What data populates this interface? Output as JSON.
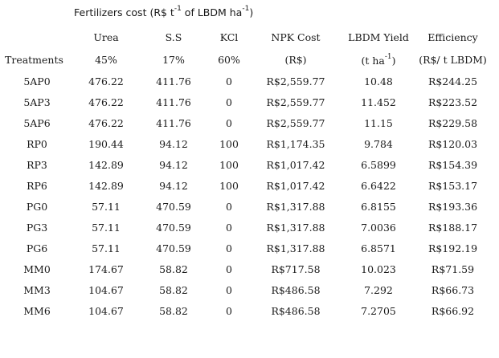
{
  "title": {
    "prefix": "Fertilizers cost (R$ t",
    "sup1": "-1",
    "middle": " of LBDM ha",
    "sup2": "-1",
    "suffix": ")"
  },
  "header_row1": {
    "urea": "Urea",
    "ss": "S.S",
    "kcl": "KCl",
    "npk": "NPK Cost",
    "yield": "LBDM Yield",
    "efficiency": "Efficiency"
  },
  "header_row2": {
    "treatments": "Treatments",
    "urea": "45%",
    "ss": "17%",
    "kcl": "60%",
    "npk": "(R$)",
    "yield_prefix": "(t ha",
    "yield_sup": "-1",
    "yield_suffix": ")",
    "efficiency": "(R$/ t LBDM)"
  },
  "rows": [
    {
      "treatment": "5AP0",
      "urea": "476.22",
      "ss": "411.76",
      "kcl": "0",
      "npk": "R$2,559.77",
      "yield": "10.48",
      "efficiency": "R$244.25"
    },
    {
      "treatment": "5AP3",
      "urea": "476.22",
      "ss": "411.76",
      "kcl": "0",
      "npk": "R$2,559.77",
      "yield": "11.452",
      "efficiency": "R$223.52"
    },
    {
      "treatment": "5AP6",
      "urea": "476.22",
      "ss": "411.76",
      "kcl": "0",
      "npk": "R$2,559.77",
      "yield": "11.15",
      "efficiency": "R$229.58"
    },
    {
      "treatment": "RP0",
      "urea": "190.44",
      "ss": "94.12",
      "kcl": "100",
      "npk": "R$1,174.35",
      "yield": "9.784",
      "efficiency": "R$120.03"
    },
    {
      "treatment": "RP3",
      "urea": "142.89",
      "ss": "94.12",
      "kcl": "100",
      "npk": "R$1,017.42",
      "yield": "6.5899",
      "efficiency": "R$154.39"
    },
    {
      "treatment": "RP6",
      "urea": "142.89",
      "ss": "94.12",
      "kcl": "100",
      "npk": "R$1,017.42",
      "yield": "6.6422",
      "efficiency": "R$153.17"
    },
    {
      "treatment": "PG0",
      "urea": "57.11",
      "ss": "470.59",
      "kcl": "0",
      "npk": "R$1,317.88",
      "yield": "6.8155",
      "efficiency": "R$193.36"
    },
    {
      "treatment": "PG3",
      "urea": "57.11",
      "ss": "470.59",
      "kcl": "0",
      "npk": "R$1,317.88",
      "yield": "7.0036",
      "efficiency": "R$188.17"
    },
    {
      "treatment": "PG6",
      "urea": "57.11",
      "ss": "470.59",
      "kcl": "0",
      "npk": "R$1,317.88",
      "yield": "6.8571",
      "efficiency": "R$192.19"
    },
    {
      "treatment": "MM0",
      "urea": "174.67",
      "ss": "58.82",
      "kcl": "0",
      "npk": "R$717.58",
      "yield": "10.023",
      "efficiency": "R$71.59"
    },
    {
      "treatment": "MM3",
      "urea": "104.67",
      "ss": "58.82",
      "kcl": "0",
      "npk": "R$486.58",
      "yield": "7.292",
      "efficiency": "R$66.73"
    },
    {
      "treatment": "MM6",
      "urea": "104.67",
      "ss": "58.82",
      "kcl": "0",
      "npk": "R$486.58",
      "yield": "7.2705",
      "efficiency": "R$66.92"
    }
  ]
}
